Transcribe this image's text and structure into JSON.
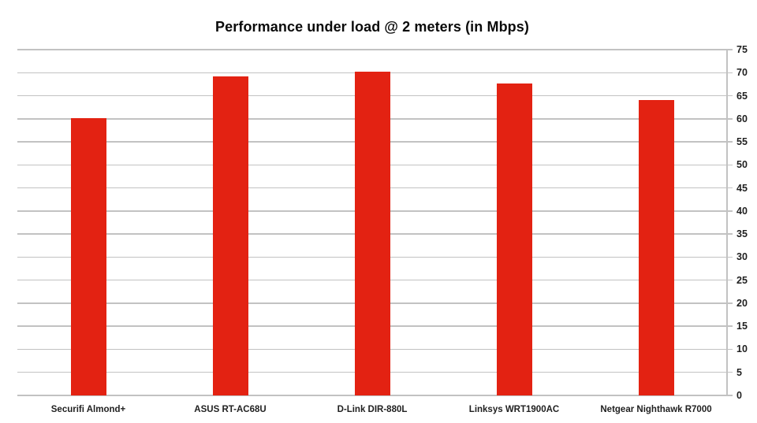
{
  "chart_data": {
    "type": "bar",
    "title": "Performance under load @ 2 meters (in Mbps)",
    "categories": [
      "Securifi Almond+",
      "ASUS RT-AC68U",
      "D-Link DIR-880L",
      "Linksys WRT1900AC",
      "Netgear Nighthawk R7000"
    ],
    "values": [
      60.2,
      69.2,
      70.3,
      67.7,
      64.0
    ],
    "xlabel": "",
    "ylabel": "",
    "ylim": [
      0,
      75
    ],
    "ytick_step": 5,
    "grid": true,
    "yaxis_side": "right",
    "legend": "none"
  },
  "colors": {
    "bar": "#e32212",
    "gridline": "#c2c2c2",
    "axis": "#c2c2c2",
    "title_text": "#0a0a0a",
    "tick_text": "#1f1f1f",
    "background": "#ffffff"
  }
}
